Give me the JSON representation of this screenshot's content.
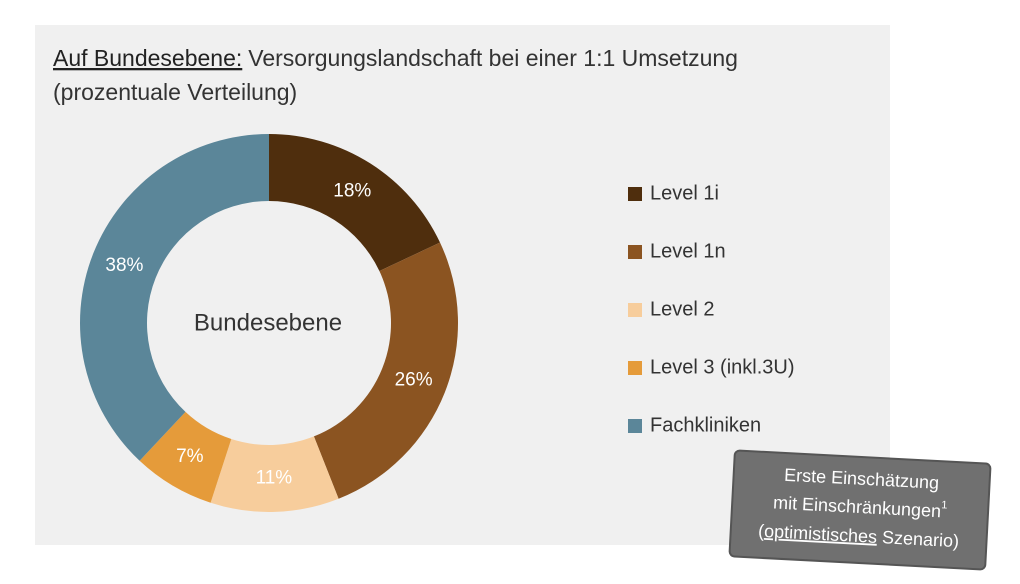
{
  "chart_data": {
    "type": "donut",
    "title_prefix": "Auf Bundesebene:",
    "title": "Versorgungslandschaft bei einer 1:1 Umsetzung",
    "subtitle": "(prozentuale Verteilung)",
    "center_label": "Bundesebene",
    "categories": [
      "Level 1i",
      "Level 1n",
      "Level 2",
      "Level 3 (inkl.3U)",
      "Fachkliniken"
    ],
    "values": [
      18,
      26,
      11,
      7,
      38
    ],
    "value_labels": [
      "18%",
      "26%",
      "11%",
      "7%",
      "38%"
    ],
    "colors": [
      "#4f2e0d",
      "#8b5421",
      "#f7cd9c",
      "#e59b3a",
      "#5b8699"
    ],
    "legend": "right"
  },
  "note": {
    "line1": "Erste Einschätzung",
    "line2": "mit Einschränkungen",
    "footnote": "1",
    "line3_open": "(",
    "line3_underlined": "optimistisches",
    "line3_rest": " Szenario)"
  }
}
